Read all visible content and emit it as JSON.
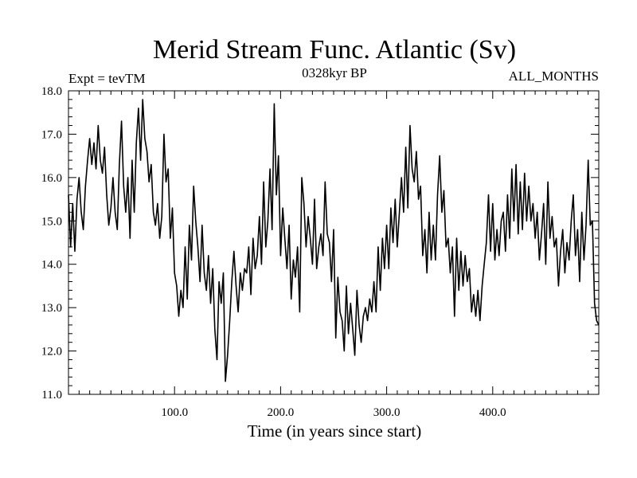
{
  "chart_data": {
    "type": "line",
    "title": "Merid Stream Func. Atlantic (Sv)",
    "expt_label": "Expt = tevTM",
    "period_label": "0328kyr BP",
    "months_label": "ALL_MONTHS",
    "xlabel": "Time (in years since start)",
    "ylabel": "",
    "xlim": [
      0,
      500
    ],
    "ylim": [
      11.0,
      18.0
    ],
    "grid": false,
    "line_color": "#000000",
    "x_ticks": [
      {
        "value": 100,
        "label": "100.0"
      },
      {
        "value": 200,
        "label": "200.0"
      },
      {
        "value": 300,
        "label": "300.0"
      },
      {
        "value": 400,
        "label": "400.0"
      }
    ],
    "y_ticks": [
      {
        "value": 11,
        "label": "11.0"
      },
      {
        "value": 12,
        "label": "12.0"
      },
      {
        "value": 13,
        "label": "13.0"
      },
      {
        "value": 14,
        "label": "14.0"
      },
      {
        "value": 15,
        "label": "15.0"
      },
      {
        "value": 16,
        "label": "16.0"
      },
      {
        "value": 17,
        "label": "17.0"
      },
      {
        "value": 18,
        "label": "18.0"
      }
    ],
    "series": [
      {
        "x": [
          0,
          2,
          4,
          6,
          8,
          10,
          12,
          14,
          16,
          18,
          20,
          22,
          24,
          26,
          28,
          30,
          32,
          34,
          36,
          38,
          40,
          42,
          44,
          46,
          48,
          50,
          52,
          54,
          56,
          58,
          60,
          62,
          64,
          66,
          68,
          70,
          72,
          74,
          76,
          78,
          80,
          82,
          84,
          86,
          88,
          90,
          92,
          94,
          96,
          98,
          100,
          102,
          104,
          106,
          108,
          110,
          112,
          114,
          116,
          118,
          120,
          122,
          124,
          126,
          128,
          130,
          132,
          134,
          136,
          138,
          140,
          142,
          144,
          146,
          148,
          150,
          152,
          154,
          156,
          158,
          160,
          162,
          164,
          166,
          168,
          170,
          172,
          174,
          176,
          178,
          180,
          182,
          184,
          186,
          188,
          190,
          192,
          194,
          196,
          198,
          200,
          202,
          204,
          206,
          208,
          210,
          212,
          214,
          216,
          218,
          220,
          222,
          224,
          226,
          228,
          230,
          232,
          234,
          236,
          238,
          240,
          242,
          244,
          246,
          248,
          250,
          252,
          254,
          256,
          258,
          260,
          262,
          264,
          266,
          268,
          270,
          272,
          274,
          276,
          278,
          280,
          282,
          284,
          286,
          288,
          290,
          292,
          294,
          296,
          298,
          300,
          302,
          304,
          306,
          308,
          310,
          312,
          314,
          316,
          318,
          320,
          322,
          324,
          326,
          328,
          330,
          332,
          334,
          336,
          338,
          340,
          342,
          344,
          346,
          348,
          350,
          352,
          354,
          356,
          358,
          360,
          362,
          364,
          366,
          368,
          370,
          372,
          374,
          376,
          378,
          380,
          382,
          384,
          386,
          388,
          390,
          392,
          394,
          396,
          398,
          400,
          402,
          404,
          406,
          408,
          410,
          412,
          414,
          416,
          418,
          420,
          422,
          424,
          426,
          428,
          430,
          432,
          434,
          436,
          438,
          440,
          442,
          444,
          446,
          448,
          450,
          452,
          454,
          456,
          458,
          460,
          462,
          464,
          466,
          468,
          470,
          472,
          474,
          476,
          478,
          480,
          482,
          484,
          486,
          488,
          490,
          492,
          494,
          496,
          498,
          500
        ],
        "y": [
          15.6,
          14.4,
          15.4,
          14.3,
          15.5,
          16.0,
          15.2,
          14.8,
          15.8,
          16.4,
          16.9,
          16.3,
          16.8,
          16.2,
          17.2,
          16.4,
          16.1,
          16.7,
          15.6,
          14.9,
          15.3,
          16.0,
          15.2,
          14.8,
          16.3,
          17.3,
          15.8,
          15.2,
          16.0,
          14.6,
          16.4,
          15.2,
          16.8,
          17.6,
          16.4,
          17.8,
          16.9,
          16.6,
          15.9,
          16.3,
          15.2,
          14.9,
          15.4,
          14.6,
          15.1,
          17.0,
          15.9,
          16.2,
          14.6,
          15.3,
          13.8,
          13.5,
          12.8,
          13.4,
          13.0,
          14.4,
          13.2,
          14.9,
          14.1,
          15.8,
          15.0,
          14.4,
          13.6,
          14.9,
          13.8,
          13.4,
          14.2,
          13.1,
          13.9,
          12.5,
          11.8,
          13.6,
          13.1,
          13.8,
          11.3,
          11.9,
          12.7,
          13.6,
          14.3,
          13.5,
          12.9,
          13.8,
          13.4,
          13.9,
          13.8,
          14.4,
          13.3,
          14.6,
          13.9,
          14.2,
          15.1,
          14.0,
          15.9,
          14.4,
          15.0,
          16.2,
          14.8,
          17.7,
          15.6,
          16.5,
          14.2,
          15.3,
          14.6,
          13.9,
          14.9,
          13.2,
          14.1,
          13.7,
          14.4,
          12.9,
          16.0,
          15.4,
          14.4,
          15.1,
          14.6,
          14.0,
          15.5,
          13.9,
          14.4,
          14.7,
          14.2,
          15.9,
          14.7,
          14.5,
          13.6,
          14.8,
          12.3,
          13.7,
          12.9,
          12.7,
          12.0,
          13.5,
          12.4,
          13.1,
          12.5,
          11.9,
          13.4,
          12.6,
          12.2,
          12.8,
          13.0,
          12.7,
          13.2,
          12.9,
          13.6,
          12.9,
          14.4,
          13.4,
          14.6,
          13.9,
          14.9,
          13.9,
          15.3,
          14.5,
          15.5,
          14.4,
          15.2,
          16.0,
          15.2,
          16.7,
          15.3,
          17.2,
          16.2,
          15.9,
          16.6,
          15.5,
          15.8,
          14.2,
          14.8,
          13.8,
          15.2,
          14.1,
          14.9,
          14.1,
          15.6,
          16.5,
          15.2,
          15.7,
          14.4,
          14.6,
          13.8,
          14.4,
          12.8,
          14.6,
          13.4,
          14.3,
          13.5,
          14.2,
          13.6,
          13.9,
          12.9,
          13.3,
          12.8,
          13.4,
          12.7,
          13.5,
          14.0,
          14.5,
          15.6,
          14.3,
          15.4,
          14.1,
          14.8,
          14.2,
          15.0,
          15.2,
          14.3,
          15.6,
          14.6,
          16.2,
          15.0,
          16.3,
          14.7,
          15.9,
          14.8,
          16.1,
          15.0,
          15.8,
          15.0,
          15.4,
          14.6,
          15.2,
          14.1,
          14.7,
          15.4,
          14.0,
          15.9,
          14.6,
          15.1,
          14.4,
          14.6,
          13.5,
          14.3,
          14.8,
          13.8,
          14.5,
          14.1,
          15.0,
          15.6,
          14.2,
          14.8,
          13.6,
          15.2,
          14.1,
          14.9,
          16.4,
          14.9,
          15.0,
          13.1,
          12.7,
          12.6
        ]
      }
    ]
  }
}
